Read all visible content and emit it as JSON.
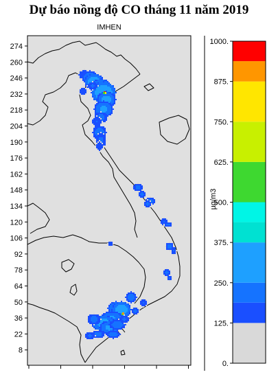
{
  "header": {
    "title": "Dự báo nồng độ CO tháng 11 năm 2019",
    "subtitle": "IMHEN"
  },
  "map": {
    "background_color": "#e0e0e0",
    "y_ticks": [
      274,
      260,
      246,
      232,
      218,
      204,
      190,
      176,
      162,
      148,
      134,
      120,
      106,
      92,
      78,
      64,
      50,
      36,
      22,
      8
    ],
    "x_tick_count": 6
  },
  "colorbar": {
    "unit": "µg/m3",
    "tick_labels": [
      "1000.",
      "875.",
      "750.",
      "625.",
      "500.",
      "375.",
      "250.",
      "125.",
      "0."
    ],
    "bands": [
      {
        "min": 0,
        "max": 125,
        "color": "#d9d9d9"
      },
      {
        "min": 125,
        "max": 188,
        "color": "#1a4fff"
      },
      {
        "min": 188,
        "max": 250,
        "color": "#1573ff"
      },
      {
        "min": 250,
        "max": 375,
        "color": "#1ea0ff"
      },
      {
        "min": 375,
        "max": 438,
        "color": "#00e1d2"
      },
      {
        "min": 438,
        "max": 500,
        "color": "#00f5e6"
      },
      {
        "min": 500,
        "max": 625,
        "color": "#3ed830"
      },
      {
        "min": 625,
        "max": 750,
        "color": "#c8f000"
      },
      {
        "min": 750,
        "max": 875,
        "color": "#ffe600"
      },
      {
        "min": 875,
        "max": 938,
        "color": "#ff9600"
      },
      {
        "min": 938,
        "max": 1000,
        "color": "#ff0000"
      }
    ]
  }
}
